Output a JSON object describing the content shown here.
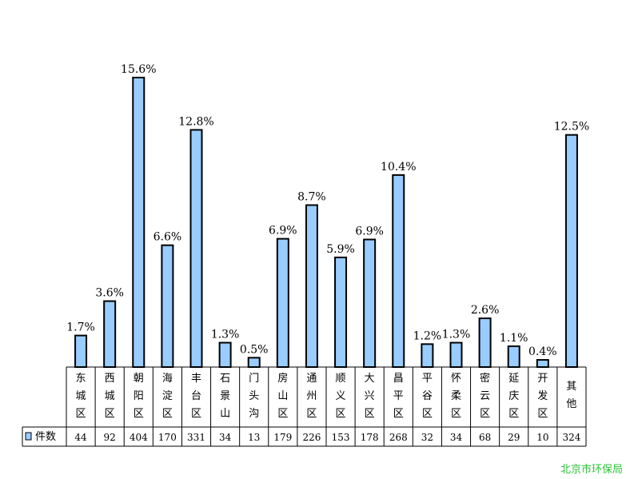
{
  "chart_data": {
    "type": "bar",
    "categories": [
      [
        "东",
        "城",
        "区"
      ],
      [
        "西",
        "城",
        "区"
      ],
      [
        "朝",
        "阳",
        "区"
      ],
      [
        "海",
        "淀",
        "区"
      ],
      [
        "丰",
        "台",
        "区"
      ],
      [
        "石",
        "景",
        "山"
      ],
      [
        "门",
        "头",
        "沟"
      ],
      [
        "房",
        "山",
        "区"
      ],
      [
        "通",
        "州",
        "区"
      ],
      [
        "顺",
        "义",
        "区"
      ],
      [
        "大",
        "兴",
        "区"
      ],
      [
        "昌",
        "平",
        "区"
      ],
      [
        "平",
        "谷",
        "区"
      ],
      [
        "怀",
        "柔",
        "区"
      ],
      [
        "密",
        "云",
        "区"
      ],
      [
        "延",
        "庆",
        "区"
      ],
      [
        "开",
        "发",
        "区"
      ],
      [
        "其",
        "他"
      ]
    ],
    "series": [
      {
        "name": "件数",
        "values": [
          44,
          92,
          404,
          170,
          331,
          34,
          13,
          179,
          226,
          153,
          178,
          268,
          32,
          34,
          68,
          29,
          10,
          324
        ],
        "percent_labels": [
          "1.7%",
          "3.6%",
          "15.6%",
          "6.6%",
          "12.8%",
          "1.3%",
          "0.5%",
          "6.9%",
          "8.7%",
          "5.9%",
          "6.9%",
          "10.4%",
          "1.2%",
          "1.3%",
          "2.6%",
          "1.1%",
          "0.4%",
          "12.5%"
        ]
      }
    ],
    "count_labels": [
      "44",
      "92",
      "404",
      "170",
      "331",
      "34",
      "13",
      "179",
      "226",
      "153",
      "178",
      "268",
      "32",
      "34",
      "68",
      "29",
      "10",
      "324"
    ],
    "ylim": [
      0,
      410
    ],
    "grid": false,
    "legend_position": "data-table-left",
    "bar_color": "#99ccff",
    "bar_edge_color": "#000000"
  },
  "source_text": "北京市环保局"
}
